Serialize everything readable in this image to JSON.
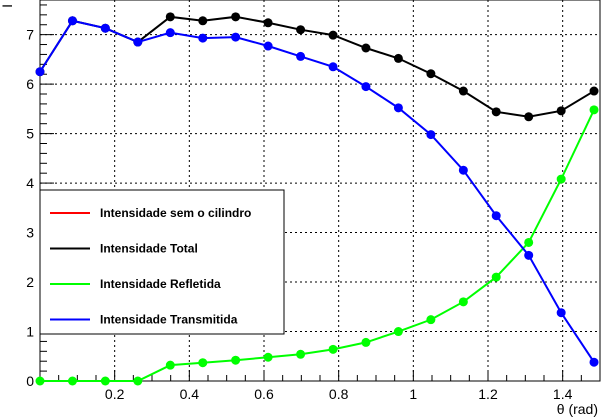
{
  "chart_data": {
    "type": "line",
    "xlabel": "θ (rad)",
    "ylabel": "I",
    "xlim": [
      0,
      1.5
    ],
    "ylim": [
      0,
      7.7
    ],
    "x_ticks": [
      0.2,
      0.4,
      0.6,
      0.8,
      1,
      1.2,
      1.4
    ],
    "x_tick_labels": [
      "0.2",
      "0.4",
      "0.6",
      "0.8",
      "1",
      "1.2",
      "1.4"
    ],
    "y_ticks": [
      0,
      1,
      2,
      3,
      4,
      5,
      6,
      7
    ],
    "y_tick_labels": [
      "0",
      "1",
      "2",
      "3",
      "4",
      "5",
      "6",
      "7"
    ],
    "grid": true,
    "legend_position": "bottom-left",
    "x": [
      0.0,
      0.087,
      0.175,
      0.262,
      0.349,
      0.436,
      0.524,
      0.611,
      0.698,
      0.785,
      0.873,
      0.96,
      1.047,
      1.134,
      1.222,
      1.309,
      1.396,
      1.484
    ],
    "series": [
      {
        "name": "Intensidade sem o cilindro",
        "color": "#ff0000",
        "markers": false,
        "values": [
          7.72,
          7.72,
          7.72,
          7.72,
          7.72,
          7.72,
          7.72,
          7.72,
          7.72,
          7.72,
          7.72,
          7.72,
          7.72,
          7.72,
          7.72,
          7.72,
          7.72,
          7.72
        ]
      },
      {
        "name": "Intensidade Total",
        "color": "#000000",
        "markers": true,
        "values": [
          6.25,
          7.28,
          7.13,
          6.85,
          7.36,
          7.28,
          7.36,
          7.24,
          7.1,
          6.99,
          6.73,
          6.52,
          6.21,
          5.86,
          5.44,
          5.34,
          5.46,
          5.86
        ]
      },
      {
        "name": "Intensidade Refletida",
        "color": "#00ff00",
        "markers": true,
        "values": [
          0.0,
          0.0,
          0.0,
          0.0,
          0.32,
          0.37,
          0.42,
          0.48,
          0.54,
          0.64,
          0.78,
          1.0,
          1.24,
          1.6,
          2.1,
          2.8,
          4.08,
          5.48
        ]
      },
      {
        "name": "Intensidade Transmitida",
        "color": "#0000ff",
        "markers": true,
        "values": [
          6.25,
          7.28,
          7.13,
          6.85,
          7.04,
          6.93,
          6.95,
          6.77,
          6.56,
          6.35,
          5.95,
          5.52,
          4.98,
          4.26,
          3.34,
          2.54,
          1.38,
          0.38
        ]
      }
    ]
  }
}
